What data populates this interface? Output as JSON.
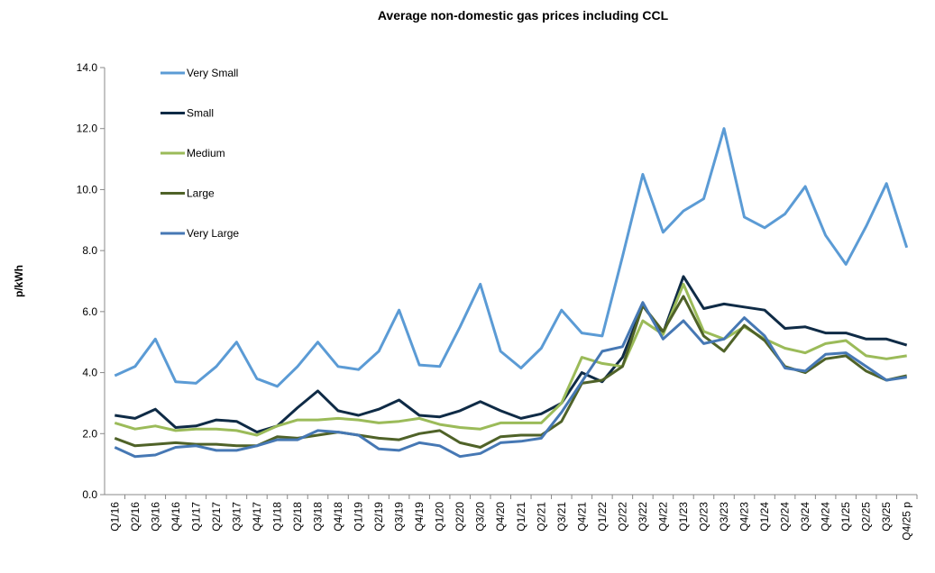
{
  "chart_data": {
    "type": "line",
    "title": "Average non-domestic gas prices including CCL",
    "xlabel": "",
    "ylabel": "p/kWh",
    "ylim": [
      0,
      14
    ],
    "yticks": [
      "0.0",
      "2.0",
      "4.0",
      "6.0",
      "8.0",
      "10.0",
      "12.0",
      "14.0"
    ],
    "grid": false,
    "legend_placement": "top-left",
    "categories": [
      "Q1/16",
      "Q2/16",
      "Q3/16",
      "Q4/16",
      "Q1/17",
      "Q2/17",
      "Q3/17",
      "Q4/17",
      "Q1/18",
      "Q2/18",
      "Q3/18",
      "Q4/18",
      "Q1/19",
      "Q2/19",
      "Q3/19",
      "Q4/19",
      "Q1/20",
      "Q2/20",
      "Q3/20",
      "Q4/20",
      "Q1/21",
      "Q2/21",
      "Q3/21",
      "Q4/21",
      "Q1/22",
      "Q2/22",
      "Q3/22",
      "Q4/22",
      "Q1/23",
      "Q2/23",
      "Q3/23",
      "Q4/23",
      "Q1/24",
      "Q2/24",
      "Q3/24",
      "Q4/24",
      "Q1/25",
      "Q2/25",
      "Q3/25",
      "Q4/25 p"
    ],
    "series": [
      {
        "name": "Very Small",
        "color": "#5B9BD5",
        "values": [
          3.9,
          4.2,
          5.1,
          3.7,
          3.65,
          4.2,
          5.0,
          3.8,
          3.55,
          4.2,
          5.0,
          4.2,
          4.1,
          4.7,
          6.05,
          4.25,
          4.2,
          5.5,
          6.9,
          4.7,
          4.15,
          4.8,
          6.05,
          5.3,
          5.2,
          7.8,
          10.5,
          8.6,
          9.3,
          9.7,
          12.0,
          9.1,
          8.75,
          9.2,
          10.1,
          8.5,
          7.55,
          8.8,
          10.2,
          8.1
        ]
      },
      {
        "name": "Small",
        "color": "#0F2B46",
        "values": [
          2.6,
          2.5,
          2.8,
          2.2,
          2.25,
          2.45,
          2.4,
          2.05,
          2.25,
          2.85,
          3.4,
          2.75,
          2.6,
          2.8,
          3.1,
          2.6,
          2.55,
          2.75,
          3.05,
          2.75,
          2.5,
          2.65,
          3.0,
          4.0,
          3.7,
          4.5,
          6.2,
          5.3,
          7.15,
          6.1,
          6.25,
          6.15,
          6.05,
          5.45,
          5.5,
          5.3,
          5.3,
          5.1,
          5.1,
          4.9
        ]
      },
      {
        "name": "Medium",
        "color": "#9BBB59",
        "values": [
          2.35,
          2.15,
          2.25,
          2.1,
          2.15,
          2.15,
          2.1,
          1.95,
          2.25,
          2.45,
          2.45,
          2.5,
          2.45,
          2.35,
          2.4,
          2.5,
          2.3,
          2.2,
          2.15,
          2.35,
          2.35,
          2.35,
          3.0,
          4.5,
          4.3,
          4.2,
          5.7,
          5.25,
          6.9,
          5.35,
          5.1,
          5.5,
          5.1,
          4.8,
          4.65,
          4.95,
          5.05,
          4.55,
          4.45,
          4.55
        ]
      },
      {
        "name": "Large",
        "color": "#4F6228",
        "values": [
          1.85,
          1.6,
          1.65,
          1.7,
          1.65,
          1.65,
          1.6,
          1.6,
          1.9,
          1.85,
          1.95,
          2.05,
          1.95,
          1.85,
          1.8,
          2.0,
          2.1,
          1.7,
          1.55,
          1.9,
          1.95,
          1.95,
          2.4,
          3.65,
          3.75,
          4.2,
          6.2,
          5.35,
          6.5,
          5.2,
          4.7,
          5.55,
          5.05,
          4.2,
          4.0,
          4.45,
          4.55,
          4.05,
          3.75,
          3.9
        ]
      },
      {
        "name": "Very Large",
        "color": "#4678B4",
        "values": [
          1.55,
          1.25,
          1.3,
          1.55,
          1.6,
          1.45,
          1.45,
          1.6,
          1.8,
          1.8,
          2.1,
          2.05,
          1.95,
          1.5,
          1.45,
          1.7,
          1.6,
          1.25,
          1.35,
          1.7,
          1.75,
          1.85,
          2.7,
          3.7,
          4.7,
          4.85,
          6.3,
          5.1,
          5.7,
          4.95,
          5.1,
          5.8,
          5.2,
          4.15,
          4.05,
          4.6,
          4.65,
          4.2,
          3.75,
          3.85
        ]
      }
    ]
  }
}
